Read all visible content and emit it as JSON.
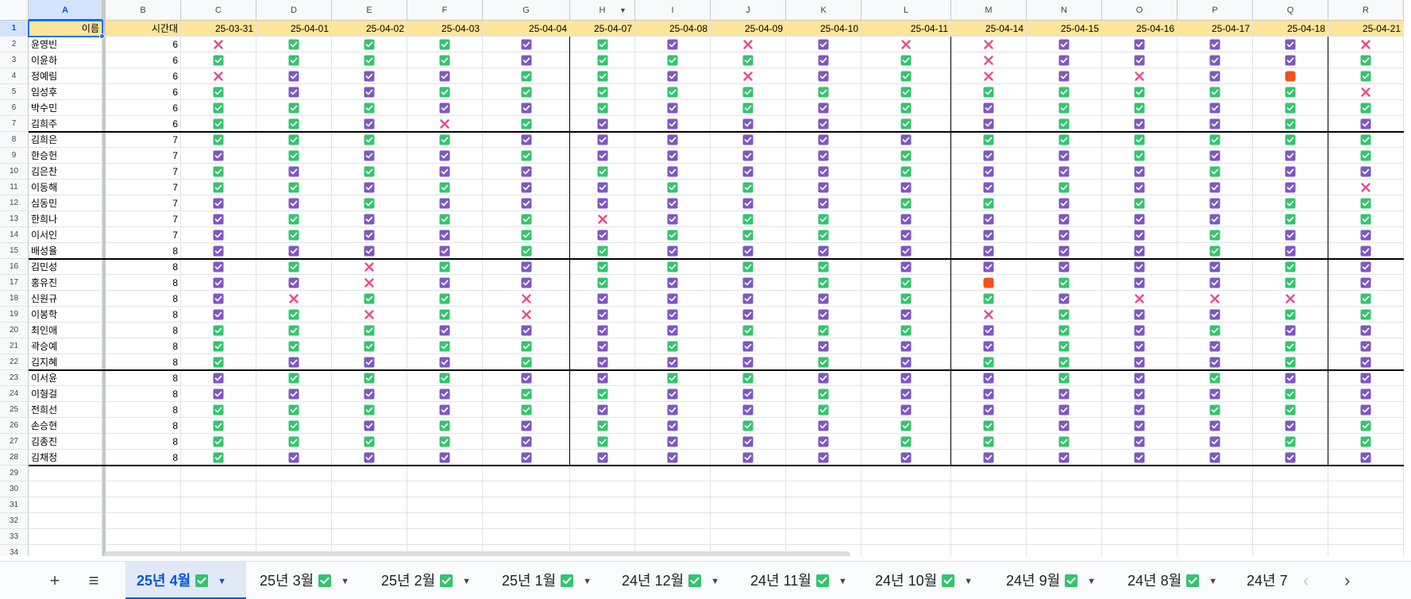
{
  "column_letters": [
    "A",
    "B",
    "C",
    "D",
    "E",
    "F",
    "G",
    "H",
    "I",
    "J",
    "K",
    "L",
    "M",
    "N",
    "O",
    "P",
    "Q",
    "R"
  ],
  "header": {
    "name": "이름",
    "slot": "시간대",
    "dates": [
      "25-03-31",
      "25-04-01",
      "25-04-02",
      "25-04-03",
      "25-04-04",
      "25-04-07",
      "25-04-08",
      "25-04-09",
      "25-04-10",
      "25-04-11",
      "25-04-14",
      "25-04-15",
      "25-04-16",
      "25-04-17",
      "25-04-18",
      "25-04-21"
    ]
  },
  "legend": {
    "g": "green-check",
    "p": "purple-check",
    "x": "red-x",
    "o": "orange-square"
  },
  "rows": [
    {
      "name": "윤영빈",
      "slot": "6",
      "marks": "xgggpgpxpxxppppx"
    },
    {
      "name": "이윤하",
      "slot": "6",
      "marks": "ggggpgggpgxppppg"
    },
    {
      "name": "정예림",
      "slot": "6",
      "marks": "xpppggpxpgxpxpog"
    },
    {
      "name": "임성후",
      "slot": "6",
      "marks": "gppggggggggggggx"
    },
    {
      "name": "박수민",
      "slot": "6",
      "marks": "gggppgpgpgpggpgg"
    },
    {
      "name": "김희주",
      "slot": "6",
      "marks": "ggpxgppppgpgppgp"
    },
    {
      "name": "김희은",
      "slot": "7",
      "marks": "ggggppppppgggggg"
    },
    {
      "name": "한승헌",
      "slot": "7",
      "marks": "pgppgppppgppgppg"
    },
    {
      "name": "김은찬",
      "slot": "7",
      "marks": "gpgppgpppgpppgpp"
    },
    {
      "name": "이동해",
      "slot": "7",
      "marks": "ggpgppggpppgpppx"
    },
    {
      "name": "심동민",
      "slot": "7",
      "marks": "ppgppppppggpgpgg"
    },
    {
      "name": "한희나",
      "slot": "7",
      "marks": "pgpggxpggpppppgg"
    },
    {
      "name": "이서인",
      "slot": "7",
      "marks": "pgppgpgggppppgpp"
    },
    {
      "name": "배성율",
      "slot": "8",
      "marks": "ppppggpppppppgpp"
    },
    {
      "name": "김민성",
      "slot": "8",
      "marks": "pgxgpggggpppppgp"
    },
    {
      "name": "홍유진",
      "slot": "8",
      "marks": "ppxppgppggogppgp"
    },
    {
      "name": "신원규",
      "slot": "8",
      "marks": "pxggxppppggpxxxg"
    },
    {
      "name": "이봉학",
      "slot": "8",
      "marks": "pgxgxpppppxgppgg"
    },
    {
      "name": "최인애",
      "slot": "8",
      "marks": "gggppppgggpgpgpp"
    },
    {
      "name": "곽승예",
      "slot": "8",
      "marks": "gggggpgppppgppgp"
    },
    {
      "name": "김지혜",
      "slot": "8",
      "marks": "gpppgpppgpggppgp"
    },
    {
      "name": "이서윤",
      "slot": "8",
      "marks": "pgggppggpppgpgpp"
    },
    {
      "name": "이형걸",
      "slot": "8",
      "marks": "ppppggppgpppppgp"
    },
    {
      "name": "전희선",
      "slot": "8",
      "marks": "gggpgpppgppppggp"
    },
    {
      "name": "손승현",
      "slot": "8",
      "marks": "ggpgpgpgpggppppg"
    },
    {
      "name": "김종진",
      "slot": "8",
      "marks": "ggggpgpppgggppgg"
    },
    {
      "name": "김채정",
      "slot": "8",
      "marks": "gppppppppppppppp"
    }
  ],
  "tabs": {
    "add_label": "+",
    "menu_label": "≡",
    "items": [
      "25년 4월",
      "25년 3월",
      "25년 2월",
      "25년 1월",
      "24년 12월",
      "24년 11월",
      "24년 10월",
      "24년 9월",
      "24년 8월",
      "24년 7"
    ],
    "active_index": 0,
    "prev_label": "‹",
    "next_label": "›"
  }
}
